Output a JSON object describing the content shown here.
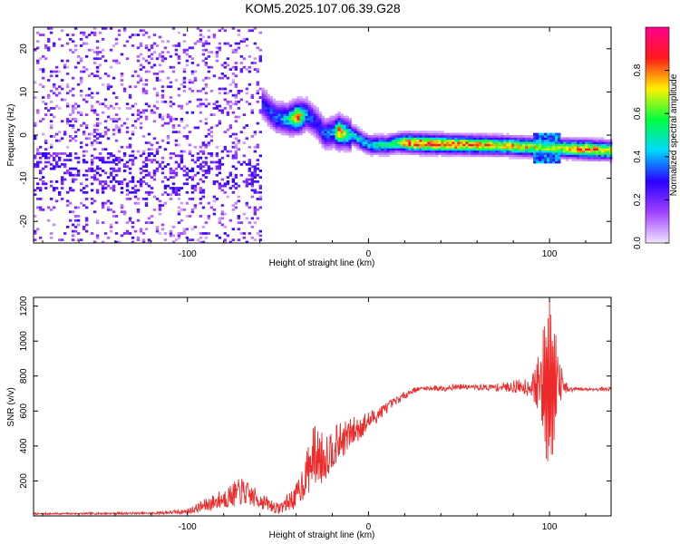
{
  "title": "KOM5.2025.107.06.39.G28",
  "chart_data": [
    {
      "type": "heatmap",
      "xlabel": "Height of straight line (km)",
      "ylabel": "Frequency (Hz)",
      "xlim": [
        -185,
        134
      ],
      "ylim": [
        -25,
        25
      ],
      "xticks": [
        -100,
        0,
        100
      ],
      "yticks": [
        -20,
        -10,
        0,
        10,
        20
      ],
      "colorbar": {
        "label": "Normalized spectral amplitude",
        "range": [
          0,
          1
        ],
        "ticks": [
          0.0,
          0.2,
          0.4,
          0.6,
          0.8
        ],
        "colormap": [
          "#f2e4ff",
          "#a040ff",
          "#2a00ff",
          "#00d8ff",
          "#00ff40",
          "#fff000",
          "#ff1a1a",
          "#ff0090"
        ]
      },
      "ridge": {
        "x": [
          -59,
          -52,
          -45,
          -40,
          -35,
          -30,
          -25,
          -20,
          -17,
          -12,
          -8,
          -3,
          0,
          5,
          10,
          15,
          20,
          30,
          40,
          50,
          60,
          70,
          80,
          90,
          100,
          110,
          120,
          134
        ],
        "y": [
          7,
          4,
          3.5,
          4,
          4.5,
          3,
          0,
          0.5,
          0.5,
          0,
          -0.5,
          -2,
          -2.5,
          -2.5,
          -2.5,
          -2,
          -2,
          -2.2,
          -2.3,
          -2.4,
          -2.5,
          -2.6,
          -2.8,
          -3.0,
          -3.2,
          -3.3,
          -3.5,
          -3.8
        ],
        "amplitude": [
          0.3,
          0.35,
          0.45,
          0.9,
          0.4,
          0.3,
          0.35,
          0.4,
          0.85,
          0.5,
          0.5,
          0.45,
          0.45,
          0.5,
          0.5,
          0.6,
          0.85,
          0.9,
          0.85,
          0.85,
          0.8,
          0.75,
          0.75,
          0.7,
          0.65,
          0.75,
          0.85,
          0.7
        ]
      },
      "noise_amplitude": 0.12
    },
    {
      "type": "line",
      "xlabel": "Height of straight line (km)",
      "ylabel": "SNR (v/v)",
      "xlim": [
        -185,
        134
      ],
      "ylim": [
        0,
        1250
      ],
      "xticks": [
        -100,
        0,
        100
      ],
      "yticks": [
        200,
        400,
        600,
        800,
        1000,
        1200
      ],
      "color": "#ee2a2a",
      "envelope": {
        "x": [
          -185,
          -120,
          -100,
          -90,
          -80,
          -70,
          -60,
          -50,
          -40,
          -35,
          -30,
          -25,
          -20,
          -10,
          0,
          10,
          20,
          25,
          30,
          40,
          50,
          60,
          70,
          80,
          90,
          95,
          100,
          105,
          110,
          115,
          134
        ],
        "y": [
          12,
          15,
          25,
          60,
          100,
          140,
          90,
          40,
          110,
          220,
          350,
          330,
          390,
          470,
          540,
          620,
          690,
          720,
          730,
          730,
          740,
          735,
          735,
          740,
          740,
          750,
          730,
          760,
          720,
          725,
          725
        ],
        "noise": [
          5,
          6,
          15,
          40,
          60,
          80,
          50,
          30,
          70,
          120,
          180,
          150,
          120,
          90,
          60,
          30,
          20,
          15,
          10,
          20,
          15,
          15,
          20,
          35,
          60,
          200,
          400,
          150,
          20,
          10,
          10
        ]
      }
    }
  ]
}
